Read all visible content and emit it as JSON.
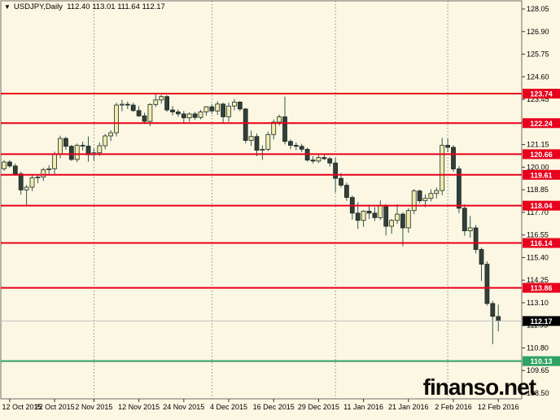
{
  "window": {
    "title_symbol": "USDJPY,Daily",
    "title_ohlc": "112.40 113.01 111.64 112.17",
    "dropdown_icon": "▼"
  },
  "watermark": "finanso.net",
  "colors": {
    "background": "#fcf7e3",
    "border": "#6e6e6e",
    "grid_separator": "#8a8a8a",
    "bull_body": "#efedaf",
    "bear_body": "#333f39",
    "wick": "#2c5a50",
    "outline": "#1f2a24",
    "level_red": "#e8001c",
    "level_green": "#2fa363",
    "bid_line": "#c0c0c0",
    "bid_label_bg": "#000000",
    "label_text": "#ffffff",
    "axis_text": "#000000"
  },
  "chart_data": {
    "type": "candlestick",
    "symbol": "USDJPY",
    "timeframe": "Daily",
    "title": "USDJPY,Daily",
    "last_bar": {
      "open": 112.4,
      "high": 113.01,
      "low": 111.64,
      "close": 112.17
    },
    "current_price": 112.17,
    "current_price_label": "112.17",
    "y_axis": {
      "min": 108.5,
      "max": 128.05,
      "step": 1.15,
      "ticks": [
        "128.05",
        "126.90",
        "125.75",
        "124.60",
        "123.45",
        "122.30",
        "121.15",
        "120.00",
        "118.85",
        "117.70",
        "116.55",
        "115.40",
        "114.25",
        "113.10",
        "111.95",
        "110.80",
        "109.65",
        "108.50"
      ]
    },
    "x_axis": {
      "labels": [
        {
          "text": "12 Oct 2015",
          "index": 1
        },
        {
          "text": "22 Oct 2015",
          "index": 9
        },
        {
          "text": "2 Nov 2015",
          "index": 16
        },
        {
          "text": "12 Nov 2015",
          "index": 24
        },
        {
          "text": "24 Nov 2015",
          "index": 32
        },
        {
          "text": "4 Dec 2015",
          "index": 40
        },
        {
          "text": "16 Dec 2015",
          "index": 48
        },
        {
          "text": "29 Dec 2015",
          "index": 56
        },
        {
          "text": "11 Jan 2016",
          "index": 64
        },
        {
          "text": "21 Jan 2016",
          "index": 72
        },
        {
          "text": "2 Feb 2016",
          "index": 80
        },
        {
          "text": "12 Feb 2016",
          "index": 88
        }
      ],
      "month_separators_index": [
        16,
        37,
        59,
        79
      ]
    },
    "horizontal_levels": [
      {
        "price": 123.74,
        "label": "123.74",
        "color": "red"
      },
      {
        "price": 122.24,
        "label": "122.24",
        "color": "red"
      },
      {
        "price": 120.66,
        "label": "120.66",
        "color": "red"
      },
      {
        "price": 119.61,
        "label": "119.61",
        "color": "red"
      },
      {
        "price": 118.04,
        "label": "118.04",
        "color": "red"
      },
      {
        "price": 116.14,
        "label": "116.14",
        "color": "red"
      },
      {
        "price": 113.86,
        "label": "113.86",
        "color": "red"
      },
      {
        "price": 110.13,
        "label": "110.13",
        "color": "green"
      }
    ],
    "candles": [
      {
        "d": "9 Oct 2015",
        "o": 119.92,
        "h": 120.35,
        "l": 119.82,
        "c": 120.26
      },
      {
        "d": "12 Oct 2015",
        "o": 120.26,
        "h": 120.36,
        "l": 119.97,
        "c": 120.06
      },
      {
        "d": "13 Oct 2015",
        "o": 120.06,
        "h": 120.18,
        "l": 119.56,
        "c": 119.66
      },
      {
        "d": "14 Oct 2015",
        "o": 119.66,
        "h": 119.77,
        "l": 118.61,
        "c": 118.84
      },
      {
        "d": "15 Oct 2015",
        "o": 118.84,
        "h": 119.1,
        "l": 118.05,
        "c": 118.98
      },
      {
        "d": "16 Oct 2015",
        "o": 118.98,
        "h": 119.6,
        "l": 118.78,
        "c": 119.46
      },
      {
        "d": "19 Oct 2015",
        "o": 119.46,
        "h": 119.65,
        "l": 119.18,
        "c": 119.5
      },
      {
        "d": "20 Oct 2015",
        "o": 119.5,
        "h": 119.97,
        "l": 119.3,
        "c": 119.87
      },
      {
        "d": "21 Oct 2015",
        "o": 119.87,
        "h": 120.1,
        "l": 119.6,
        "c": 119.92
      },
      {
        "d": "22 Oct 2015",
        "o": 119.92,
        "h": 120.78,
        "l": 119.6,
        "c": 120.67
      },
      {
        "d": "23 Oct 2015",
        "o": 120.67,
        "h": 121.6,
        "l": 120.45,
        "c": 121.46
      },
      {
        "d": "26 Oct 2015",
        "o": 121.46,
        "h": 121.55,
        "l": 120.88,
        "c": 121.06
      },
      {
        "d": "27 Oct 2015",
        "o": 121.06,
        "h": 121.13,
        "l": 120.32,
        "c": 120.39
      },
      {
        "d": "28 Oct 2015",
        "o": 120.39,
        "h": 121.2,
        "l": 120.25,
        "c": 121.11
      },
      {
        "d": "29 Oct 2015",
        "o": 121.11,
        "h": 121.3,
        "l": 120.84,
        "c": 121.07
      },
      {
        "d": "30 Oct 2015",
        "o": 121.07,
        "h": 121.56,
        "l": 120.28,
        "c": 120.63
      },
      {
        "d": "2 Nov 2015",
        "o": 120.63,
        "h": 120.94,
        "l": 120.34,
        "c": 120.73
      },
      {
        "d": "3 Nov 2015",
        "o": 120.73,
        "h": 121.26,
        "l": 120.57,
        "c": 121.09
      },
      {
        "d": "4 Nov 2015",
        "o": 121.09,
        "h": 121.69,
        "l": 120.91,
        "c": 121.59
      },
      {
        "d": "5 Nov 2015",
        "o": 121.59,
        "h": 121.88,
        "l": 121.33,
        "c": 121.75
      },
      {
        "d": "6 Nov 2015",
        "o": 121.75,
        "h": 123.27,
        "l": 121.57,
        "c": 123.16
      },
      {
        "d": "9 Nov 2015",
        "o": 123.16,
        "h": 123.42,
        "l": 122.84,
        "c": 123.2
      },
      {
        "d": "10 Nov 2015",
        "o": 123.2,
        "h": 123.34,
        "l": 122.96,
        "c": 123.16
      },
      {
        "d": "11 Nov 2015",
        "o": 123.16,
        "h": 123.28,
        "l": 122.81,
        "c": 122.88
      },
      {
        "d": "12 Nov 2015",
        "o": 122.88,
        "h": 123.11,
        "l": 122.55,
        "c": 122.61
      },
      {
        "d": "13 Nov 2015",
        "o": 122.61,
        "h": 122.77,
        "l": 122.23,
        "c": 122.33
      },
      {
        "d": "16 Nov 2015",
        "o": 122.33,
        "h": 123.25,
        "l": 122.08,
        "c": 123.19
      },
      {
        "d": "17 Nov 2015",
        "o": 123.19,
        "h": 123.77,
        "l": 123.06,
        "c": 123.42
      },
      {
        "d": "18 Nov 2015",
        "o": 123.42,
        "h": 123.68,
        "l": 123.23,
        "c": 123.59
      },
      {
        "d": "19 Nov 2015",
        "o": 123.59,
        "h": 123.66,
        "l": 122.81,
        "c": 122.91
      },
      {
        "d": "20 Nov 2015",
        "o": 122.91,
        "h": 123.11,
        "l": 122.63,
        "c": 122.81
      },
      {
        "d": "23 Nov 2015",
        "o": 122.81,
        "h": 122.93,
        "l": 122.56,
        "c": 122.71
      },
      {
        "d": "24 Nov 2015",
        "o": 122.71,
        "h": 122.86,
        "l": 122.25,
        "c": 122.51
      },
      {
        "d": "25 Nov 2015",
        "o": 122.51,
        "h": 122.79,
        "l": 122.31,
        "c": 122.71
      },
      {
        "d": "26 Nov 2015",
        "o": 122.71,
        "h": 122.81,
        "l": 122.41,
        "c": 122.53
      },
      {
        "d": "27 Nov 2015",
        "o": 122.53,
        "h": 122.91,
        "l": 122.44,
        "c": 122.81
      },
      {
        "d": "30 Nov 2015",
        "o": 122.81,
        "h": 123.11,
        "l": 122.62,
        "c": 123.07
      },
      {
        "d": "1 Dec 2015",
        "o": 123.07,
        "h": 123.21,
        "l": 122.71,
        "c": 122.86
      },
      {
        "d": "2 Dec 2015",
        "o": 122.86,
        "h": 123.35,
        "l": 122.66,
        "c": 123.21
      },
      {
        "d": "3 Dec 2015",
        "o": 123.21,
        "h": 123.28,
        "l": 122.22,
        "c": 122.56
      },
      {
        "d": "4 Dec 2015",
        "o": 122.56,
        "h": 123.28,
        "l": 122.31,
        "c": 123.11
      },
      {
        "d": "7 Dec 2015",
        "o": 123.11,
        "h": 123.47,
        "l": 122.89,
        "c": 123.31
      },
      {
        "d": "8 Dec 2015",
        "o": 123.31,
        "h": 123.36,
        "l": 122.86,
        "c": 122.96
      },
      {
        "d": "9 Dec 2015",
        "o": 122.96,
        "h": 123.01,
        "l": 121.21,
        "c": 121.36
      },
      {
        "d": "10 Dec 2015",
        "o": 121.36,
        "h": 121.86,
        "l": 121.08,
        "c": 121.56
      },
      {
        "d": "11 Dec 2015",
        "o": 121.56,
        "h": 121.71,
        "l": 120.56,
        "c": 120.86
      },
      {
        "d": "14 Dec 2015",
        "o": 120.86,
        "h": 121.11,
        "l": 120.36,
        "c": 120.91
      },
      {
        "d": "15 Dec 2015",
        "o": 120.91,
        "h": 121.81,
        "l": 120.81,
        "c": 121.66
      },
      {
        "d": "16 Dec 2015",
        "o": 121.66,
        "h": 122.43,
        "l": 121.41,
        "c": 122.29
      },
      {
        "d": "17 Dec 2015",
        "o": 122.29,
        "h": 122.68,
        "l": 122.11,
        "c": 122.56
      },
      {
        "d": "18 Dec 2015",
        "o": 122.56,
        "h": 123.59,
        "l": 121.16,
        "c": 121.31
      },
      {
        "d": "21 Dec 2015",
        "o": 121.31,
        "h": 121.41,
        "l": 120.91,
        "c": 121.11
      },
      {
        "d": "22 Dec 2015",
        "o": 121.11,
        "h": 121.26,
        "l": 120.86,
        "c": 121.06
      },
      {
        "d": "23 Dec 2015",
        "o": 121.06,
        "h": 121.19,
        "l": 120.76,
        "c": 120.91
      },
      {
        "d": "24 Dec 2015",
        "o": 120.91,
        "h": 120.99,
        "l": 120.28,
        "c": 120.36
      },
      {
        "d": "28 Dec 2015",
        "o": 120.36,
        "h": 120.56,
        "l": 120.19,
        "c": 120.31
      },
      {
        "d": "29 Dec 2015",
        "o": 120.31,
        "h": 120.61,
        "l": 120.21,
        "c": 120.49
      },
      {
        "d": "30 Dec 2015",
        "o": 120.49,
        "h": 120.66,
        "l": 120.36,
        "c": 120.43
      },
      {
        "d": "31 Dec 2015",
        "o": 120.43,
        "h": 120.51,
        "l": 120.03,
        "c": 120.21
      },
      {
        "d": "4 Jan 2016",
        "o": 120.21,
        "h": 120.49,
        "l": 118.71,
        "c": 119.43
      },
      {
        "d": "5 Jan 2016",
        "o": 119.43,
        "h": 119.7,
        "l": 118.96,
        "c": 119.08
      },
      {
        "d": "6 Jan 2016",
        "o": 119.08,
        "h": 119.21,
        "l": 118.29,
        "c": 118.46
      },
      {
        "d": "7 Jan 2016",
        "o": 118.46,
        "h": 118.56,
        "l": 117.33,
        "c": 117.66
      },
      {
        "d": "8 Jan 2016",
        "o": 117.66,
        "h": 118.21,
        "l": 116.86,
        "c": 117.29
      },
      {
        "d": "11 Jan 2016",
        "o": 117.29,
        "h": 117.81,
        "l": 116.96,
        "c": 117.76
      },
      {
        "d": "12 Jan 2016",
        "o": 117.76,
        "h": 118.09,
        "l": 117.36,
        "c": 117.66
      },
      {
        "d": "13 Jan 2016",
        "o": 117.66,
        "h": 117.96,
        "l": 117.26,
        "c": 117.43
      },
      {
        "d": "14 Jan 2016",
        "o": 117.43,
        "h": 118.31,
        "l": 117.31,
        "c": 118.06
      },
      {
        "d": "15 Jan 2016",
        "o": 118.06,
        "h": 118.11,
        "l": 116.52,
        "c": 116.99
      },
      {
        "d": "18 Jan 2016",
        "o": 116.99,
        "h": 117.36,
        "l": 116.61,
        "c": 117.29
      },
      {
        "d": "19 Jan 2016",
        "o": 117.29,
        "h": 118.11,
        "l": 117.11,
        "c": 117.61
      },
      {
        "d": "20 Jan 2016",
        "o": 117.61,
        "h": 117.71,
        "l": 115.98,
        "c": 116.91
      },
      {
        "d": "21 Jan 2016",
        "o": 116.91,
        "h": 117.91,
        "l": 116.66,
        "c": 117.79
      },
      {
        "d": "22 Jan 2016",
        "o": 117.79,
        "h": 118.89,
        "l": 117.61,
        "c": 118.79
      },
      {
        "d": "25 Jan 2016",
        "o": 118.79,
        "h": 118.86,
        "l": 118.16,
        "c": 118.29
      },
      {
        "d": "26 Jan 2016",
        "o": 118.29,
        "h": 118.61,
        "l": 117.96,
        "c": 118.41
      },
      {
        "d": "27 Jan 2016",
        "o": 118.41,
        "h": 118.87,
        "l": 118.26,
        "c": 118.66
      },
      {
        "d": "28 Jan 2016",
        "o": 118.66,
        "h": 118.96,
        "l": 118.41,
        "c": 118.81
      },
      {
        "d": "29 Jan 2016",
        "o": 118.81,
        "h": 121.49,
        "l": 118.57,
        "c": 121.11
      },
      {
        "d": "1 Feb 2016",
        "o": 121.11,
        "h": 121.46,
        "l": 120.76,
        "c": 121.01
      },
      {
        "d": "2 Feb 2016",
        "o": 121.01,
        "h": 121.11,
        "l": 119.76,
        "c": 119.91
      },
      {
        "d": "3 Feb 2016",
        "o": 119.91,
        "h": 120.06,
        "l": 117.66,
        "c": 117.91
      },
      {
        "d": "4 Feb 2016",
        "o": 117.91,
        "h": 118.11,
        "l": 116.51,
        "c": 116.76
      },
      {
        "d": "5 Feb 2016",
        "o": 116.76,
        "h": 117.51,
        "l": 116.41,
        "c": 116.91
      },
      {
        "d": "8 Feb 2016",
        "o": 116.91,
        "h": 117.06,
        "l": 115.61,
        "c": 115.81
      },
      {
        "d": "9 Feb 2016",
        "o": 115.81,
        "h": 115.91,
        "l": 114.21,
        "c": 115.06
      },
      {
        "d": "10 Feb 2016",
        "o": 115.06,
        "h": 115.21,
        "l": 112.96,
        "c": 113.06
      },
      {
        "d": "11 Feb 2016",
        "o": 113.06,
        "h": 113.19,
        "l": 110.99,
        "c": 112.41
      },
      {
        "d": "12 Feb 2016",
        "o": 112.4,
        "h": 113.01,
        "l": 111.64,
        "c": 112.17
      }
    ]
  }
}
